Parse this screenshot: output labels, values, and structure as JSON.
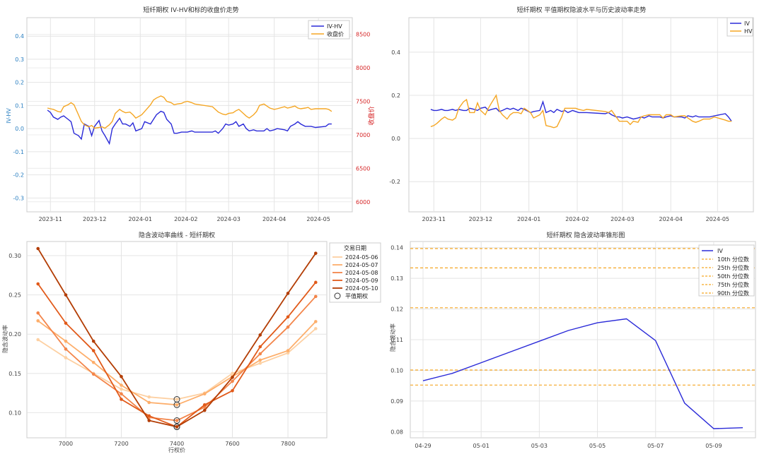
{
  "chart_data": [
    {
      "type": "line",
      "title": "短纤期权 IV-HV和标的收盘价走势",
      "ylabel": "IV-HV",
      "ylabel_right": "收盘价",
      "xticks": [
        "2023-11",
        "2023-12",
        "2024-01",
        "2024-02",
        "2024-03",
        "2024-04",
        "2024-05"
      ],
      "yticks_left": [
        "0.4",
        "0.3",
        "0.2",
        "0.1",
        "0.0",
        "-0.1",
        "-0.2",
        "-0.3"
      ],
      "yticks_right": [
        "8500",
        "8000",
        "7500",
        "7000",
        "6500",
        "6000"
      ],
      "ylim_left": [
        -0.36,
        0.48
      ],
      "ylim_right": [
        5850,
        8750
      ],
      "series": [
        {
          "name": "IV-HV",
          "color": "#2a2ad8",
          "axis": "left",
          "x": [
            "2023-10-30",
            "2023-11-01",
            "2023-11-03",
            "2023-11-06",
            "2023-11-08",
            "2023-11-10",
            "2023-11-13",
            "2023-11-15",
            "2023-11-17",
            "2023-11-20",
            "2023-11-22",
            "2023-11-24",
            "2023-11-27",
            "2023-11-29",
            "2023-12-01",
            "2023-12-04",
            "2023-12-06",
            "2023-12-08",
            "2023-12-11",
            "2023-12-13",
            "2023-12-15",
            "2023-12-18",
            "2023-12-20",
            "2023-12-22",
            "2023-12-25",
            "2023-12-27",
            "2023-12-29",
            "2024-01-02",
            "2024-01-04",
            "2024-01-08",
            "2024-01-10",
            "2024-01-12",
            "2024-01-15",
            "2024-01-17",
            "2024-01-19",
            "2024-01-22",
            "2024-01-24",
            "2024-01-26",
            "2024-01-29",
            "2024-01-31",
            "2024-02-02",
            "2024-02-05",
            "2024-02-07",
            "2024-02-19",
            "2024-02-21",
            "2024-02-23",
            "2024-02-26",
            "2024-02-28",
            "2024-03-01",
            "2024-03-04",
            "2024-03-06",
            "2024-03-08",
            "2024-03-11",
            "2024-03-13",
            "2024-03-15",
            "2024-03-18",
            "2024-03-20",
            "2024-03-22",
            "2024-03-25",
            "2024-03-27",
            "2024-03-29",
            "2024-04-01",
            "2024-04-03",
            "2024-04-08",
            "2024-04-10",
            "2024-04-12",
            "2024-04-15",
            "2024-04-17",
            "2024-04-19",
            "2024-04-22",
            "2024-04-24",
            "2024-04-26",
            "2024-04-29",
            "2024-05-06",
            "2024-05-08",
            "2024-05-10"
          ],
          "values": [
            0.08,
            0.07,
            0.05,
            0.04,
            0.05,
            0.055,
            0.04,
            0.03,
            -0.02,
            -0.03,
            -0.045,
            0.02,
            0.01,
            -0.03,
            0.01,
            0.035,
            -0.01,
            -0.03,
            -0.065,
            0.0,
            0.02,
            0.045,
            0.02,
            0.02,
            0.01,
            0.025,
            -0.01,
            0.0,
            0.03,
            0.02,
            0.04,
            0.06,
            0.075,
            0.07,
            0.04,
            0.02,
            -0.02,
            -0.02,
            -0.015,
            -0.015,
            -0.015,
            -0.01,
            -0.015,
            -0.015,
            -0.01,
            -0.02,
            0.0,
            0.02,
            0.015,
            0.02,
            0.03,
            0.01,
            0.02,
            0.0,
            -0.01,
            -0.005,
            -0.01,
            -0.01,
            -0.01,
            0.0,
            -0.01,
            -0.005,
            0.0,
            -0.005,
            -0.01,
            0.01,
            0.02,
            0.03,
            0.02,
            0.01,
            0.01,
            0.01,
            0.005,
            0.01,
            0.02,
            0.02
          ]
        },
        {
          "name": "收盘价",
          "color": "#f5a623",
          "axis": "right",
          "x": [
            "2023-10-30",
            "2023-11-01",
            "2023-11-03",
            "2023-11-06",
            "2023-11-08",
            "2023-11-10",
            "2023-11-13",
            "2023-11-15",
            "2023-11-17",
            "2023-11-20",
            "2023-11-22",
            "2023-11-24",
            "2023-11-27",
            "2023-11-29",
            "2023-12-01",
            "2023-12-04",
            "2023-12-06",
            "2023-12-08",
            "2023-12-11",
            "2023-12-13",
            "2023-12-15",
            "2023-12-18",
            "2023-12-20",
            "2023-12-22",
            "2023-12-25",
            "2023-12-27",
            "2023-12-29",
            "2024-01-02",
            "2024-01-04",
            "2024-01-08",
            "2024-01-10",
            "2024-01-12",
            "2024-01-15",
            "2024-01-17",
            "2024-01-19",
            "2024-01-22",
            "2024-01-24",
            "2024-01-26",
            "2024-01-29",
            "2024-01-31",
            "2024-02-02",
            "2024-02-05",
            "2024-02-07",
            "2024-02-19",
            "2024-02-21",
            "2024-02-23",
            "2024-02-26",
            "2024-02-28",
            "2024-03-01",
            "2024-03-04",
            "2024-03-06",
            "2024-03-08",
            "2024-03-11",
            "2024-03-13",
            "2024-03-15",
            "2024-03-18",
            "2024-03-20",
            "2024-03-22",
            "2024-03-25",
            "2024-03-27",
            "2024-03-29",
            "2024-04-01",
            "2024-04-03",
            "2024-04-08",
            "2024-04-10",
            "2024-04-12",
            "2024-04-15",
            "2024-04-17",
            "2024-04-19",
            "2024-04-22",
            "2024-04-24",
            "2024-04-26",
            "2024-04-29",
            "2024-05-06",
            "2024-05-08",
            "2024-05-10"
          ],
          "values": [
            7400,
            7390,
            7380,
            7350,
            7340,
            7420,
            7450,
            7480,
            7450,
            7300,
            7200,
            7150,
            7120,
            7140,
            7100,
            7110,
            7120,
            7100,
            7150,
            7200,
            7320,
            7380,
            7350,
            7330,
            7340,
            7300,
            7250,
            7300,
            7350,
            7450,
            7520,
            7550,
            7580,
            7560,
            7500,
            7480,
            7450,
            7460,
            7470,
            7490,
            7500,
            7480,
            7460,
            7420,
            7380,
            7340,
            7310,
            7300,
            7320,
            7330,
            7360,
            7380,
            7320,
            7280,
            7250,
            7300,
            7350,
            7440,
            7460,
            7430,
            7400,
            7380,
            7390,
            7420,
            7400,
            7410,
            7430,
            7400,
            7390,
            7400,
            7410,
            7380,
            7390,
            7390,
            7380,
            7350
          ]
        }
      ]
    },
    {
      "type": "line",
      "title": "短纤期权 平值期权隐波水平与历史波动率走势",
      "xticks": [
        "2023-11",
        "2023-12",
        "2024-01",
        "2024-02",
        "2024-03",
        "2024-04",
        "2024-05"
      ],
      "yticks": [
        "0.4",
        "0.2",
        "0.0",
        "-0.2"
      ],
      "ylim": [
        -0.34,
        0.56
      ],
      "series": [
        {
          "name": "IV",
          "color": "#2a2ad8",
          "x": [
            "2023-10-30",
            "2023-11-01",
            "2023-11-03",
            "2023-11-06",
            "2023-11-08",
            "2023-11-10",
            "2023-11-13",
            "2023-11-15",
            "2023-11-17",
            "2023-11-20",
            "2023-11-22",
            "2023-11-24",
            "2023-11-27",
            "2023-11-29",
            "2023-12-01",
            "2023-12-04",
            "2023-12-06",
            "2023-12-08",
            "2023-12-11",
            "2023-12-13",
            "2023-12-15",
            "2023-12-18",
            "2023-12-20",
            "2023-12-22",
            "2023-12-25",
            "2023-12-27",
            "2023-12-29",
            "2024-01-02",
            "2024-01-04",
            "2024-01-08",
            "2024-01-10",
            "2024-01-12",
            "2024-01-15",
            "2024-01-17",
            "2024-01-19",
            "2024-01-22",
            "2024-01-24",
            "2024-01-26",
            "2024-01-29",
            "2024-01-31",
            "2024-02-02",
            "2024-02-05",
            "2024-02-07",
            "2024-02-19",
            "2024-02-21",
            "2024-02-23",
            "2024-02-26",
            "2024-02-28",
            "2024-03-01",
            "2024-03-04",
            "2024-03-06",
            "2024-03-08",
            "2024-03-11",
            "2024-03-13",
            "2024-03-15",
            "2024-03-18",
            "2024-03-20",
            "2024-03-22",
            "2024-03-25",
            "2024-03-27",
            "2024-03-29",
            "2024-04-01",
            "2024-04-03",
            "2024-04-08",
            "2024-04-10",
            "2024-04-12",
            "2024-04-15",
            "2024-04-17",
            "2024-04-19",
            "2024-04-22",
            "2024-04-24",
            "2024-04-26",
            "2024-04-29",
            "2024-05-06",
            "2024-05-08",
            "2024-05-10"
          ],
          "values": [
            0.135,
            0.13,
            0.13,
            0.135,
            0.13,
            0.13,
            0.135,
            0.13,
            0.135,
            0.13,
            0.13,
            0.14,
            0.135,
            0.13,
            0.14,
            0.145,
            0.13,
            0.135,
            0.14,
            0.125,
            0.13,
            0.14,
            0.135,
            0.14,
            0.13,
            0.14,
            0.135,
            0.12,
            0.125,
            0.13,
            0.17,
            0.12,
            0.13,
            0.12,
            0.135,
            0.125,
            0.13,
            0.12,
            0.13,
            0.125,
            0.12,
            0.12,
            0.12,
            0.115,
            0.12,
            0.11,
            0.1,
            0.1,
            0.095,
            0.1,
            0.095,
            0.09,
            0.095,
            0.1,
            0.095,
            0.105,
            0.1,
            0.1,
            0.1,
            0.095,
            0.1,
            0.105,
            0.1,
            0.1,
            0.095,
            0.105,
            0.1,
            0.105,
            0.1,
            0.1,
            0.1,
            0.1,
            0.105,
            0.115,
            0.1,
            0.08
          ]
        },
        {
          "name": "HV",
          "color": "#f5a623",
          "x": [
            "2023-10-30",
            "2023-11-01",
            "2023-11-03",
            "2023-11-06",
            "2023-11-08",
            "2023-11-10",
            "2023-11-13",
            "2023-11-15",
            "2023-11-17",
            "2023-11-20",
            "2023-11-22",
            "2023-11-24",
            "2023-11-27",
            "2023-11-29",
            "2023-12-01",
            "2023-12-04",
            "2023-12-06",
            "2023-12-08",
            "2023-12-11",
            "2023-12-13",
            "2023-12-15",
            "2023-12-18",
            "2023-12-20",
            "2023-12-22",
            "2023-12-25",
            "2023-12-27",
            "2023-12-29",
            "2024-01-02",
            "2024-01-04",
            "2024-01-08",
            "2024-01-10",
            "2024-01-12",
            "2024-01-15",
            "2024-01-17",
            "2024-01-19",
            "2024-01-22",
            "2024-01-24",
            "2024-01-26",
            "2024-01-29",
            "2024-01-31",
            "2024-02-02",
            "2024-02-05",
            "2024-02-07",
            "2024-02-19",
            "2024-02-21",
            "2024-02-23",
            "2024-02-26",
            "2024-02-28",
            "2024-03-01",
            "2024-03-04",
            "2024-03-06",
            "2024-03-08",
            "2024-03-11",
            "2024-03-13",
            "2024-03-15",
            "2024-03-18",
            "2024-03-20",
            "2024-03-22",
            "2024-03-25",
            "2024-03-27",
            "2024-03-29",
            "2024-04-01",
            "2024-04-03",
            "2024-04-08",
            "2024-04-10",
            "2024-04-12",
            "2024-04-15",
            "2024-04-17",
            "2024-04-19",
            "2024-04-22",
            "2024-04-24",
            "2024-04-26",
            "2024-04-29",
            "2024-05-06",
            "2024-05-08",
            "2024-05-10"
          ],
          "values": [
            0.055,
            0.06,
            0.07,
            0.09,
            0.1,
            0.09,
            0.085,
            0.095,
            0.14,
            0.17,
            0.18,
            0.12,
            0.12,
            0.165,
            0.13,
            0.11,
            0.14,
            0.165,
            0.2,
            0.13,
            0.11,
            0.09,
            0.11,
            0.12,
            0.12,
            0.115,
            0.14,
            0.12,
            0.095,
            0.11,
            0.13,
            0.06,
            0.055,
            0.05,
            0.055,
            0.1,
            0.14,
            0.14,
            0.14,
            0.14,
            0.135,
            0.13,
            0.135,
            0.125,
            0.12,
            0.13,
            0.1,
            0.08,
            0.08,
            0.08,
            0.065,
            0.08,
            0.075,
            0.1,
            0.105,
            0.11,
            0.11,
            0.11,
            0.11,
            0.095,
            0.11,
            0.11,
            0.1,
            0.105,
            0.105,
            0.095,
            0.08,
            0.075,
            0.08,
            0.09,
            0.09,
            0.09,
            0.1,
            0.085,
            0.08,
            0.08
          ]
        }
      ]
    },
    {
      "type": "line",
      "title": "隐含波动率曲线 - 短纤期权",
      "xlabel": "行权价",
      "ylabel": "隐含波动率",
      "legend_title": "交易日期",
      "legend_marker_label": "平值期权",
      "xlim": [
        6860,
        7940
      ],
      "ylim": [
        0.068,
        0.318
      ],
      "xticks": [
        7000,
        7200,
        7400,
        7600,
        7800
      ],
      "yticks": [
        "0.30",
        "0.25",
        "0.20",
        "0.15",
        "0.10"
      ],
      "x": [
        6900,
        7000,
        7100,
        7200,
        7300,
        7400,
        7500,
        7600,
        7700,
        7800,
        7900
      ],
      "atm_strike": 7400,
      "series": [
        {
          "name": "2024-05-06",
          "color": "#fdd0a2",
          "values": [
            0.193,
            0.17,
            0.15,
            0.13,
            0.12,
            0.117,
            0.125,
            0.15,
            0.163,
            0.176,
            0.207
          ]
        },
        {
          "name": "2024-05-07",
          "color": "#fdae6b",
          "values": [
            0.217,
            0.191,
            0.164,
            0.135,
            0.113,
            0.11,
            0.124,
            0.146,
            0.167,
            0.179,
            0.216
          ]
        },
        {
          "name": "2024-05-08",
          "color": "#f3854a",
          "values": [
            0.227,
            0.181,
            0.149,
            0.124,
            0.094,
            0.09,
            0.107,
            0.14,
            0.175,
            0.209,
            0.248
          ]
        },
        {
          "name": "2024-05-09",
          "color": "#e15a1a",
          "values": [
            0.264,
            0.214,
            0.179,
            0.117,
            0.096,
            0.082,
            0.11,
            0.128,
            0.184,
            0.222,
            0.266
          ]
        },
        {
          "name": "2024-05-10",
          "color": "#b33d04",
          "values": [
            0.309,
            0.25,
            0.191,
            0.146,
            0.09,
            0.082,
            0.103,
            0.145,
            0.199,
            0.252,
            0.303
          ]
        }
      ]
    },
    {
      "type": "line",
      "title": "短纤期权 隐含波动率锥形图",
      "ylabel": "隐含波动率",
      "xticks": [
        "04-29",
        "05-01",
        "05-03",
        "05-05",
        "05-07",
        "05-09"
      ],
      "yticks": [
        "0.14",
        "0.13",
        "0.12",
        "0.11",
        "0.10",
        "0.09",
        "0.08"
      ],
      "ylim": [
        0.078,
        0.142
      ],
      "x": [
        "04-29",
        "04-30",
        "05-01",
        "05-02",
        "05-03",
        "05-04",
        "05-05",
        "05-06",
        "05-07",
        "05-08",
        "05-09",
        "05-10"
      ],
      "series": [
        {
          "name": "IV",
          "color": "#2a2ad8",
          "values": [
            0.0966,
            0.099,
            0.1025,
            0.106,
            0.1095,
            0.113,
            0.1155,
            0.1168,
            0.1097,
            0.0893,
            0.081,
            0.0813
          ]
        }
      ],
      "percentiles": [
        {
          "name": "10th 分位数",
          "value": 0.0952
        },
        {
          "name": "25th 分位数",
          "value": 0.1001
        },
        {
          "name": "50th 分位数",
          "value": 0.1204
        },
        {
          "name": "75th 分位数",
          "value": 0.1334
        },
        {
          "name": "90th 分位数",
          "value": 0.1397
        }
      ],
      "percentile_color": "#f5a623"
    }
  ]
}
